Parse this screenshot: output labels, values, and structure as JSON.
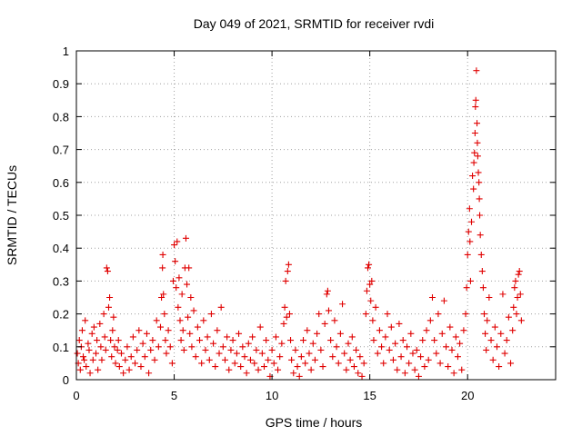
{
  "chart_data": {
    "type": "scatter",
    "title": "Day 049 of 2021, SRMTID for receiver rvdi",
    "xlabel": "GPS time / hours",
    "ylabel": "SRMTID / TECUs",
    "xlim": [
      0,
      24.5
    ],
    "ylim": [
      0,
      1
    ],
    "x_ticks": [
      0,
      5,
      10,
      15,
      20
    ],
    "x_tick_labels": [
      "0",
      "5",
      "10",
      "15",
      "20"
    ],
    "y_ticks": [
      0,
      0.1,
      0.2,
      0.3,
      0.4,
      0.5,
      0.6,
      0.7,
      0.8,
      0.9,
      1
    ],
    "y_tick_labels": [
      "0",
      "0.1",
      "0.2",
      "0.3",
      "0.4",
      "0.5",
      "0.6",
      "0.7",
      "0.8",
      "0.9",
      "1"
    ],
    "grid": true,
    "marker": "+",
    "marker_color": "#e00000",
    "series": [
      {
        "name": "SRMTID",
        "points": [
          [
            0.05,
            0.08
          ],
          [
            0.1,
            0.05
          ],
          [
            0.15,
            0.12
          ],
          [
            0.2,
            0.03
          ],
          [
            0.25,
            0.1
          ],
          [
            0.3,
            0.15
          ],
          [
            0.35,
            0.07
          ],
          [
            0.4,
            0.06
          ],
          [
            0.45,
            0.18
          ],
          [
            0.5,
            0.04
          ],
          [
            0.6,
            0.11
          ],
          [
            0.65,
            0.09
          ],
          [
            0.7,
            0.02
          ],
          [
            0.8,
            0.14
          ],
          [
            0.85,
            0.06
          ],
          [
            0.9,
            0.16
          ],
          [
            1.0,
            0.08
          ],
          [
            1.05,
            0.12
          ],
          [
            1.1,
            0.03
          ],
          [
            1.2,
            0.17
          ],
          [
            1.25,
            0.1
          ],
          [
            1.3,
            0.06
          ],
          [
            1.4,
            0.2
          ],
          [
            1.45,
            0.13
          ],
          [
            1.5,
            0.09
          ],
          [
            1.55,
            0.34
          ],
          [
            1.6,
            0.33
          ],
          [
            1.65,
            0.22
          ],
          [
            1.7,
            0.25
          ],
          [
            1.75,
            0.12
          ],
          [
            1.8,
            0.07
          ],
          [
            1.85,
            0.15
          ],
          [
            1.9,
            0.19
          ],
          [
            1.95,
            0.1
          ],
          [
            2.0,
            0.05
          ],
          [
            2.1,
            0.09
          ],
          [
            2.15,
            0.12
          ],
          [
            2.2,
            0.04
          ],
          [
            2.3,
            0.08
          ],
          [
            2.4,
            0.02
          ],
          [
            2.5,
            0.06
          ],
          [
            2.6,
            0.1
          ],
          [
            2.7,
            0.03
          ],
          [
            2.8,
            0.07
          ],
          [
            2.9,
            0.13
          ],
          [
            3.0,
            0.05
          ],
          [
            3.1,
            0.09
          ],
          [
            3.2,
            0.15
          ],
          [
            3.3,
            0.04
          ],
          [
            3.4,
            0.11
          ],
          [
            3.5,
            0.07
          ],
          [
            3.6,
            0.14
          ],
          [
            3.7,
            0.02
          ],
          [
            3.8,
            0.09
          ],
          [
            3.9,
            0.12
          ],
          [
            4.0,
            0.06
          ],
          [
            4.1,
            0.18
          ],
          [
            4.2,
            0.1
          ],
          [
            4.3,
            0.16
          ],
          [
            4.35,
            0.25
          ],
          [
            4.4,
            0.34
          ],
          [
            4.42,
            0.38
          ],
          [
            4.45,
            0.26
          ],
          [
            4.5,
            0.2
          ],
          [
            4.55,
            0.12
          ],
          [
            4.6,
            0.08
          ],
          [
            4.7,
            0.15
          ],
          [
            4.8,
            0.1
          ],
          [
            4.9,
            0.05
          ],
          [
            4.95,
            0.3
          ],
          [
            5.0,
            0.41
          ],
          [
            5.05,
            0.36
          ],
          [
            5.1,
            0.28
          ],
          [
            5.15,
            0.42
          ],
          [
            5.2,
            0.22
          ],
          [
            5.25,
            0.31
          ],
          [
            5.3,
            0.18
          ],
          [
            5.35,
            0.12
          ],
          [
            5.4,
            0.26
          ],
          [
            5.45,
            0.15
          ],
          [
            5.5,
            0.09
          ],
          [
            5.55,
            0.34
          ],
          [
            5.6,
            0.43
          ],
          [
            5.65,
            0.29
          ],
          [
            5.7,
            0.19
          ],
          [
            5.75,
            0.34
          ],
          [
            5.8,
            0.14
          ],
          [
            5.85,
            0.25
          ],
          [
            5.9,
            0.1
          ],
          [
            6.0,
            0.21
          ],
          [
            6.1,
            0.07
          ],
          [
            6.2,
            0.16
          ],
          [
            6.3,
            0.12
          ],
          [
            6.4,
            0.05
          ],
          [
            6.5,
            0.18
          ],
          [
            6.6,
            0.09
          ],
          [
            6.7,
            0.13
          ],
          [
            6.8,
            0.06
          ],
          [
            6.9,
            0.2
          ],
          [
            7.0,
            0.11
          ],
          [
            7.1,
            0.04
          ],
          [
            7.2,
            0.15
          ],
          [
            7.3,
            0.08
          ],
          [
            7.4,
            0.22
          ],
          [
            7.5,
            0.1
          ],
          [
            7.6,
            0.06
          ],
          [
            7.7,
            0.13
          ],
          [
            7.8,
            0.03
          ],
          [
            7.9,
            0.09
          ],
          [
            8.0,
            0.12
          ],
          [
            8.1,
            0.05
          ],
          [
            8.2,
            0.08
          ],
          [
            8.3,
            0.14
          ],
          [
            8.4,
            0.04
          ],
          [
            8.5,
            0.1
          ],
          [
            8.6,
            0.07
          ],
          [
            8.7,
            0.02
          ],
          [
            8.8,
            0.11
          ],
          [
            8.9,
            0.06
          ],
          [
            9.0,
            0.13
          ],
          [
            9.1,
            0.05
          ],
          [
            9.2,
            0.09
          ],
          [
            9.3,
            0.03
          ],
          [
            9.4,
            0.16
          ],
          [
            9.5,
            0.08
          ],
          [
            9.6,
            0.04
          ],
          [
            9.7,
            0.12
          ],
          [
            9.8,
            0.06
          ],
          [
            9.9,
            0.01
          ],
          [
            10.0,
            0.09
          ],
          [
            10.1,
            0.05
          ],
          [
            10.2,
            0.13
          ],
          [
            10.3,
            0.03
          ],
          [
            10.4,
            0.07
          ],
          [
            10.5,
            0.11
          ],
          [
            10.6,
            0.17
          ],
          [
            10.65,
            0.22
          ],
          [
            10.7,
            0.3
          ],
          [
            10.75,
            0.19
          ],
          [
            10.8,
            0.33
          ],
          [
            10.85,
            0.35
          ],
          [
            10.9,
            0.2
          ],
          [
            10.95,
            0.12
          ],
          [
            11.0,
            0.06
          ],
          [
            11.1,
            0.02
          ],
          [
            11.2,
            0.09
          ],
          [
            11.3,
            0.04
          ],
          [
            11.4,
            0.01
          ],
          [
            11.5,
            0.07
          ],
          [
            11.6,
            0.12
          ],
          [
            11.7,
            0.05
          ],
          [
            11.8,
            0.15
          ],
          [
            11.9,
            0.08
          ],
          [
            12.0,
            0.03
          ],
          [
            12.1,
            0.11
          ],
          [
            12.2,
            0.06
          ],
          [
            12.3,
            0.14
          ],
          [
            12.4,
            0.2
          ],
          [
            12.5,
            0.09
          ],
          [
            12.6,
            0.04
          ],
          [
            12.7,
            0.17
          ],
          [
            12.8,
            0.26
          ],
          [
            12.85,
            0.27
          ],
          [
            12.9,
            0.21
          ],
          [
            13.0,
            0.12
          ],
          [
            13.1,
            0.07
          ],
          [
            13.2,
            0.18
          ],
          [
            13.3,
            0.1
          ],
          [
            13.4,
            0.05
          ],
          [
            13.5,
            0.14
          ],
          [
            13.6,
            0.23
          ],
          [
            13.7,
            0.08
          ],
          [
            13.8,
            0.03
          ],
          [
            13.9,
            0.11
          ],
          [
            14.0,
            0.06
          ],
          [
            14.1,
            0.13
          ],
          [
            14.2,
            0.04
          ],
          [
            14.3,
            0.09
          ],
          [
            14.4,
            0.02
          ],
          [
            14.5,
            0.07
          ],
          [
            14.6,
            0.01
          ],
          [
            14.7,
            0.05
          ],
          [
            14.8,
            0.2
          ],
          [
            14.85,
            0.27
          ],
          [
            14.9,
            0.34
          ],
          [
            14.95,
            0.35
          ],
          [
            15.0,
            0.29
          ],
          [
            15.05,
            0.24
          ],
          [
            15.1,
            0.3
          ],
          [
            15.15,
            0.18
          ],
          [
            15.2,
            0.12
          ],
          [
            15.3,
            0.22
          ],
          [
            15.4,
            0.08
          ],
          [
            15.5,
            0.15
          ],
          [
            15.6,
            0.1
          ],
          [
            15.7,
            0.05
          ],
          [
            15.8,
            0.13
          ],
          [
            15.9,
            0.2
          ],
          [
            16.0,
            0.09
          ],
          [
            16.1,
            0.16
          ],
          [
            16.2,
            0.06
          ],
          [
            16.3,
            0.11
          ],
          [
            16.4,
            0.03
          ],
          [
            16.5,
            0.17
          ],
          [
            16.6,
            0.07
          ],
          [
            16.7,
            0.12
          ],
          [
            16.8,
            0.02
          ],
          [
            16.9,
            0.1
          ],
          [
            17.0,
            0.05
          ],
          [
            17.1,
            0.14
          ],
          [
            17.2,
            0.08
          ],
          [
            17.3,
            0.03
          ],
          [
            17.4,
            0.09
          ],
          [
            17.5,
            0.01
          ],
          [
            17.6,
            0.07
          ],
          [
            17.7,
            0.12
          ],
          [
            17.8,
            0.04
          ],
          [
            17.9,
            0.15
          ],
          [
            18.0,
            0.06
          ],
          [
            18.1,
            0.18
          ],
          [
            18.2,
            0.25
          ],
          [
            18.3,
            0.12
          ],
          [
            18.4,
            0.08
          ],
          [
            18.5,
            0.2
          ],
          [
            18.6,
            0.05
          ],
          [
            18.7,
            0.14
          ],
          [
            18.8,
            0.24
          ],
          [
            18.9,
            0.1
          ],
          [
            19.0,
            0.04
          ],
          [
            19.1,
            0.16
          ],
          [
            19.2,
            0.09
          ],
          [
            19.3,
            0.02
          ],
          [
            19.4,
            0.13
          ],
          [
            19.5,
            0.07
          ],
          [
            19.6,
            0.11
          ],
          [
            19.7,
            0.03
          ],
          [
            19.8,
            0.15
          ],
          [
            19.9,
            0.2
          ],
          [
            19.95,
            0.28
          ],
          [
            20.0,
            0.38
          ],
          [
            20.05,
            0.45
          ],
          [
            20.1,
            0.52
          ],
          [
            20.12,
            0.42
          ],
          [
            20.15,
            0.3
          ],
          [
            20.2,
            0.48
          ],
          [
            20.25,
            0.62
          ],
          [
            20.3,
            0.58
          ],
          [
            20.32,
            0.66
          ],
          [
            20.35,
            0.69
          ],
          [
            20.38,
            0.75
          ],
          [
            20.4,
            0.83
          ],
          [
            20.42,
            0.85
          ],
          [
            20.45,
            0.94
          ],
          [
            20.48,
            0.78
          ],
          [
            20.5,
            0.72
          ],
          [
            20.52,
            0.68
          ],
          [
            20.55,
            0.63
          ],
          [
            20.58,
            0.6
          ],
          [
            20.6,
            0.55
          ],
          [
            20.62,
            0.5
          ],
          [
            20.65,
            0.44
          ],
          [
            20.7,
            0.38
          ],
          [
            20.75,
            0.33
          ],
          [
            20.8,
            0.28
          ],
          [
            20.85,
            0.2
          ],
          [
            20.9,
            0.14
          ],
          [
            20.95,
            0.09
          ],
          [
            21.0,
            0.18
          ],
          [
            21.1,
            0.25
          ],
          [
            21.2,
            0.12
          ],
          [
            21.3,
            0.06
          ],
          [
            21.4,
            0.16
          ],
          [
            21.5,
            0.1
          ],
          [
            21.6,
            0.04
          ],
          [
            21.7,
            0.14
          ],
          [
            21.8,
            0.26
          ],
          [
            21.9,
            0.08
          ],
          [
            22.0,
            0.12
          ],
          [
            22.1,
            0.19
          ],
          [
            22.2,
            0.05
          ],
          [
            22.3,
            0.15
          ],
          [
            22.35,
            0.22
          ],
          [
            22.4,
            0.28
          ],
          [
            22.45,
            0.3
          ],
          [
            22.5,
            0.2
          ],
          [
            22.55,
            0.25
          ],
          [
            22.6,
            0.32
          ],
          [
            22.65,
            0.33
          ],
          [
            22.7,
            0.26
          ],
          [
            22.75,
            0.18
          ]
        ]
      }
    ]
  }
}
